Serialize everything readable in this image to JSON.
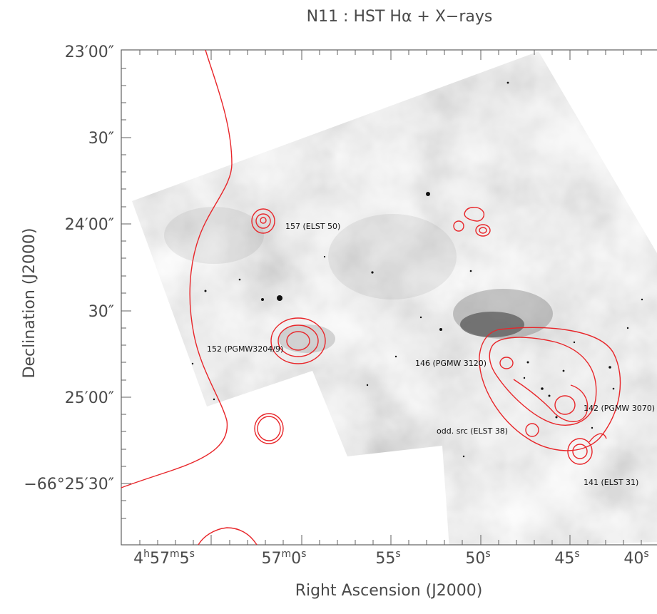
{
  "figure": {
    "title": "N11 : HST Hα + X−rays",
    "x_axis_label": "Right Ascension (J2000)",
    "y_axis_label": "Declination (J2000)",
    "ra_ticks": [
      {
        "h": "4",
        "m": "57",
        "s": "5"
      },
      {
        "m": "57",
        "s": "0"
      },
      {
        "s": "55"
      },
      {
        "s": "50"
      },
      {
        "s": "45"
      },
      {
        "s": "40"
      }
    ],
    "dec_ticks": [
      {
        "text": "23′00″"
      },
      {
        "text": "30″"
      },
      {
        "text": "24′00″"
      },
      {
        "text": "30″"
      },
      {
        "text": "25′00″"
      },
      {
        "text": "−66°25′30″"
      }
    ]
  },
  "sources": [
    {
      "label": "157 (ELST 50)"
    },
    {
      "label": "152 (PGMW3204/9)"
    },
    {
      "label": "146 (PGMW 3120)"
    },
    {
      "label": "142 (PGMW 3070)"
    },
    {
      "label": "odd. src (ELST 38)"
    },
    {
      "label": "141 (ELST 31)"
    }
  ],
  "colors": {
    "contour": "#e8262a",
    "frame": "#606060",
    "text": "#4a4a4a"
  }
}
